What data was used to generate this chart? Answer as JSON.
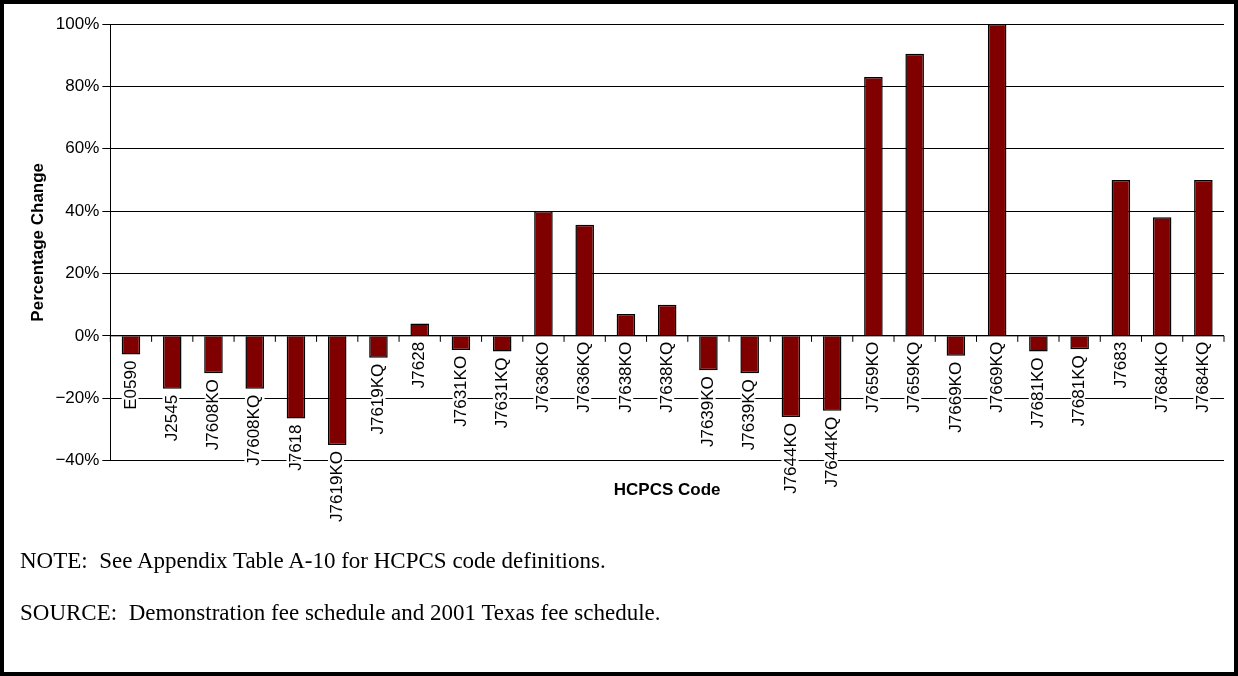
{
  "chart_data": {
    "type": "bar",
    "xlabel": "HCPCS Code",
    "ylabel": "Percentage Change",
    "categories": [
      "E0590",
      "J2545",
      "J7608KO",
      "J7608KQ",
      "J7618",
      "J7619KO",
      "J7619KQ",
      "J7628",
      "J7631KO",
      "J7631KQ",
      "J7636KO",
      "J7636KQ",
      "J7638KO",
      "J7638KQ",
      "J7639KO",
      "J7639KQ",
      "J7644KO",
      "J7644KQ",
      "J7659KO",
      "J7659KQ",
      "J7669KO",
      "J7669KQ",
      "J7681KO",
      "J7681KQ",
      "J7683",
      "J7684KO",
      "J7684KQ"
    ],
    "values": [
      -6,
      -17,
      -12,
      -17,
      -26.5,
      -35,
      -7,
      4,
      -4.5,
      -5,
      40,
      35.6,
      7,
      10,
      -11,
      -12,
      -26,
      -24,
      83,
      90.5,
      -6.4,
      100,
      -5,
      -4.3,
      50,
      38,
      50
    ],
    "color": "#800000",
    "ylim": [
      -40,
      100
    ],
    "yticks": [
      {
        "value": -40,
        "label": "−40%"
      },
      {
        "value": -20,
        "label": "−20%"
      },
      {
        "value": 0,
        "label": "0%"
      },
      {
        "value": 20,
        "label": "20%"
      },
      {
        "value": 40,
        "label": "40%"
      },
      {
        "value": 60,
        "label": "60%"
      },
      {
        "value": 80,
        "label": "80%"
      },
      {
        "value": 100,
        "label": "100%"
      }
    ],
    "grid": "y",
    "legend": false,
    "annotations": [
      "NOTE:  See Appendix Table A-10 for HCPCS code definitions.",
      "SOURCE:  Demonstration fee schedule and 2001 Texas fee schedule."
    ]
  }
}
